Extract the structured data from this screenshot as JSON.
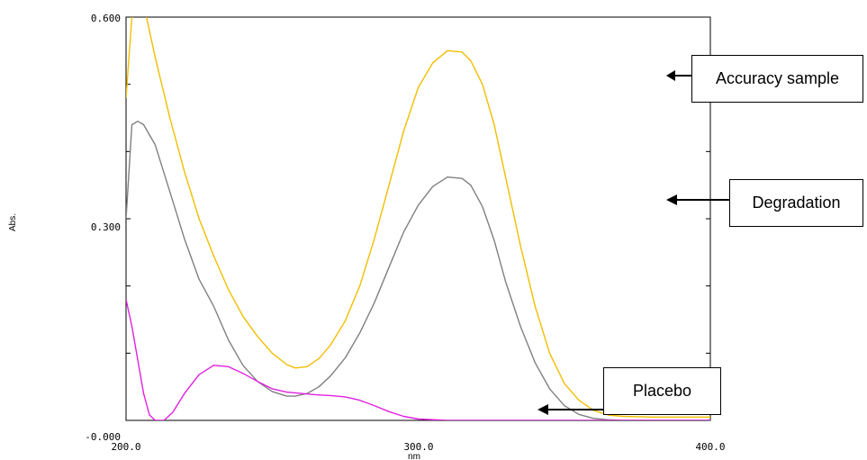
{
  "chart_data": {
    "type": "line",
    "xlabel": "nm",
    "ylabel": "Abs.",
    "xlim": [
      200.0,
      400.0
    ],
    "ylim": [
      -0.0,
      0.6
    ],
    "xticks": [
      "200.0",
      "300.0",
      "400.0"
    ],
    "yticks": [
      "-0.000",
      "0.300",
      "0.600"
    ],
    "grid": false,
    "series": [
      {
        "name": "Accuracy sample",
        "color": "#F2BE00",
        "x": [
          200,
          202,
          206,
          210,
          215,
          220,
          225,
          230,
          235,
          240,
          245,
          250,
          255,
          258,
          262,
          266,
          270,
          275,
          280,
          285,
          290,
          295,
          300,
          305,
          310,
          315,
          318,
          322,
          326,
          330,
          335,
          340,
          345,
          350,
          355,
          360,
          365,
          370,
          380,
          390,
          400
        ],
        "y": [
          0.48,
          0.6,
          0.62,
          0.54,
          0.45,
          0.37,
          0.3,
          0.245,
          0.195,
          0.155,
          0.125,
          0.1,
          0.083,
          0.078,
          0.08,
          0.092,
          0.112,
          0.148,
          0.2,
          0.27,
          0.35,
          0.43,
          0.495,
          0.532,
          0.55,
          0.548,
          0.535,
          0.5,
          0.44,
          0.36,
          0.26,
          0.17,
          0.1,
          0.055,
          0.03,
          0.015,
          0.008,
          0.006,
          0.005,
          0.005,
          0.005
        ]
      },
      {
        "name": "Degradation",
        "color": "#808080",
        "x": [
          200,
          202,
          204,
          206,
          210,
          215,
          220,
          225,
          230,
          235,
          240,
          245,
          250,
          255,
          258,
          262,
          266,
          270,
          275,
          280,
          285,
          290,
          295,
          300,
          305,
          310,
          315,
          318,
          322,
          326,
          330,
          335,
          340,
          345,
          350,
          355,
          360,
          365,
          370,
          380,
          400
        ],
        "y": [
          0.3,
          0.44,
          0.445,
          0.44,
          0.41,
          0.34,
          0.27,
          0.21,
          0.17,
          0.12,
          0.082,
          0.058,
          0.043,
          0.036,
          0.036,
          0.04,
          0.05,
          0.066,
          0.093,
          0.13,
          0.175,
          0.228,
          0.28,
          0.32,
          0.348,
          0.362,
          0.36,
          0.35,
          0.318,
          0.268,
          0.205,
          0.14,
          0.086,
          0.047,
          0.022,
          0.009,
          0.003,
          0.001,
          0.0,
          0.0,
          0.0
        ]
      },
      {
        "name": "Placebo",
        "color": "#E020E0",
        "x": [
          200,
          202,
          204,
          206,
          208,
          210,
          213,
          216,
          220,
          225,
          230,
          235,
          240,
          245,
          250,
          255,
          260,
          265,
          270,
          275,
          280,
          285,
          290,
          295,
          300,
          310,
          320,
          340,
          360,
          400
        ],
        "y": [
          0.18,
          0.14,
          0.09,
          0.04,
          0.008,
          0.0,
          0.0,
          0.012,
          0.04,
          0.068,
          0.082,
          0.08,
          0.07,
          0.058,
          0.047,
          0.042,
          0.04,
          0.038,
          0.037,
          0.035,
          0.03,
          0.022,
          0.013,
          0.006,
          0.002,
          0.0,
          0.0,
          0.0,
          0.0,
          0.0
        ]
      }
    ]
  },
  "callouts": {
    "accuracy": "Accuracy sample",
    "degradation": "Degradation",
    "placebo": "Placebo"
  }
}
